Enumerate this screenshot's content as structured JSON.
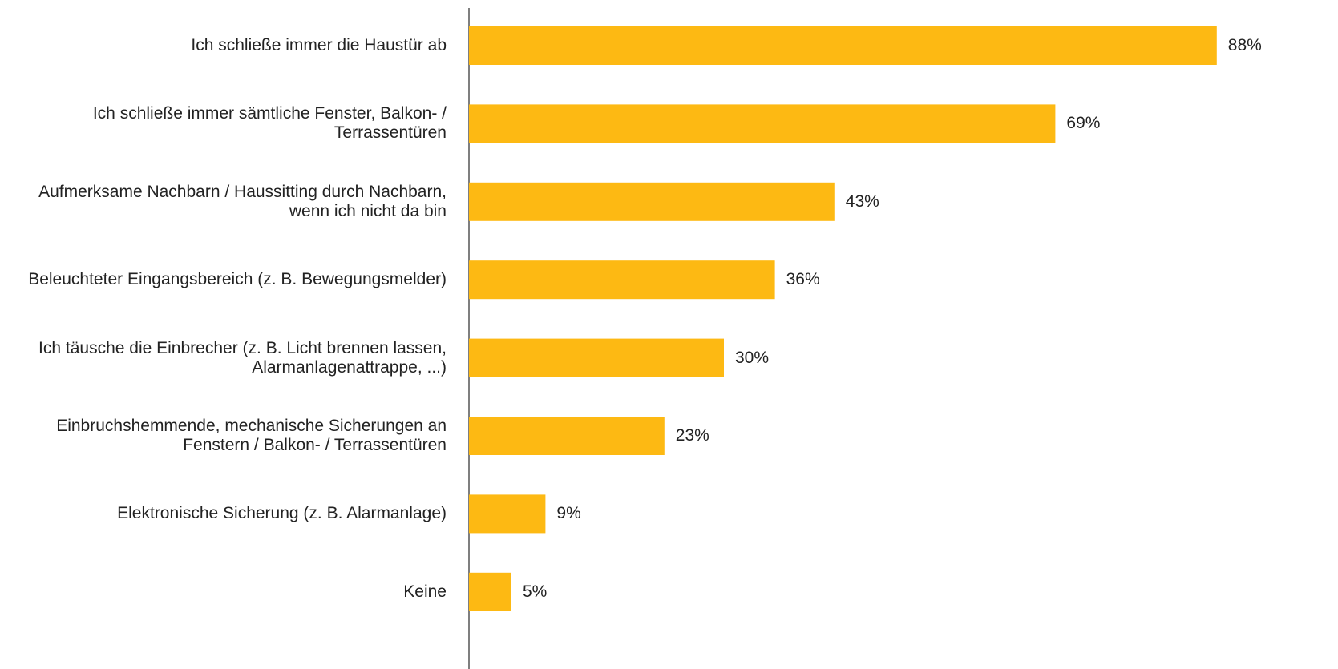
{
  "chart_data": {
    "type": "bar",
    "orientation": "horizontal",
    "color": "#fdb913",
    "categories": [
      "Ich schließe immer die Haustür ab",
      "Ich schließe immer sämtliche Fenster, Balkon- / Terrassentüren",
      "Aufmerksame Nachbarn / Haussitting durch Nachbarn, wenn ich nicht da bin",
      "Beleuchteter Eingangsbereich (z. B. Bewegungsmelder)",
      "Ich täusche die Einbrecher (z. B. Licht brennen lassen, Alarmanlagenattrappe, ...)",
      "Einbruchshemmende, mechanische Sicherungen an Fenstern / Balkon- / Terrassentüren",
      "Elektronische Sicherung (z. B. Alarmanlage)",
      "Keine"
    ],
    "values": [
      88,
      69,
      43,
      36,
      30,
      23,
      9,
      5
    ],
    "value_labels": [
      "88%",
      "69%",
      "43%",
      "36%",
      "30%",
      "23%",
      "9%",
      "5%"
    ]
  }
}
